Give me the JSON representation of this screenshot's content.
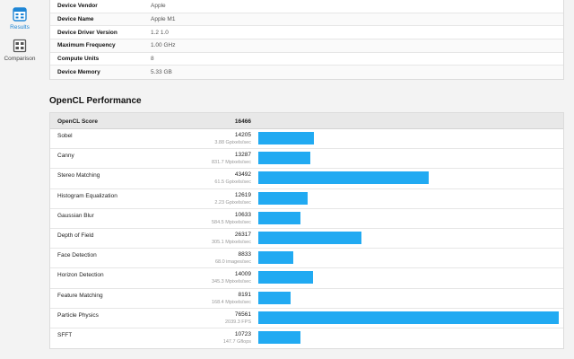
{
  "sidebar": {
    "items": [
      {
        "label": "Results",
        "icon": "results-icon",
        "active": true
      },
      {
        "label": "Comparison",
        "icon": "comparison-icon",
        "active": false
      }
    ],
    "active_color": "#1e86d6"
  },
  "device_info": [
    {
      "key": "Device Vendor",
      "value": "Apple"
    },
    {
      "key": "Device Name",
      "value": "Apple M1"
    },
    {
      "key": "Device Driver Version",
      "value": "1.2 1.0"
    },
    {
      "key": "Maximum Frequency",
      "value": "1.00 GHz"
    },
    {
      "key": "Compute Units",
      "value": "8"
    },
    {
      "key": "Device Memory",
      "value": "5.33 GB"
    }
  ],
  "section_title": "OpenCL Performance",
  "score_header": {
    "label": "OpenCL Score",
    "value": "16466"
  },
  "bar_color": "#21aaf2",
  "bar_max": 76561,
  "workloads": [
    {
      "name": "Sobel",
      "score": 14205,
      "rate": "3.88 Gpixels/sec"
    },
    {
      "name": "Canny",
      "score": 13287,
      "rate": "831.7 Mpixels/sec"
    },
    {
      "name": "Stereo Matching",
      "score": 43492,
      "rate": "61.5 Gpixels/sec"
    },
    {
      "name": "Histogram Equalization",
      "score": 12619,
      "rate": "2.23 Gpixels/sec"
    },
    {
      "name": "Gaussian Blur",
      "score": 10633,
      "rate": "584.5 Mpixels/sec"
    },
    {
      "name": "Depth of Field",
      "score": 26317,
      "rate": "305.1 Mpixels/sec"
    },
    {
      "name": "Face Detection",
      "score": 8833,
      "rate": "68.0 images/sec"
    },
    {
      "name": "Horizon Detection",
      "score": 14009,
      "rate": "345.3 Mpixels/sec"
    },
    {
      "name": "Feature Matching",
      "score": 8191,
      "rate": "168.4 Mpixels/sec"
    },
    {
      "name": "Particle Physics",
      "score": 76561,
      "rate": "2039.3 FPS"
    },
    {
      "name": "SFFT",
      "score": 10723,
      "rate": "147.7 Gflops"
    }
  ]
}
